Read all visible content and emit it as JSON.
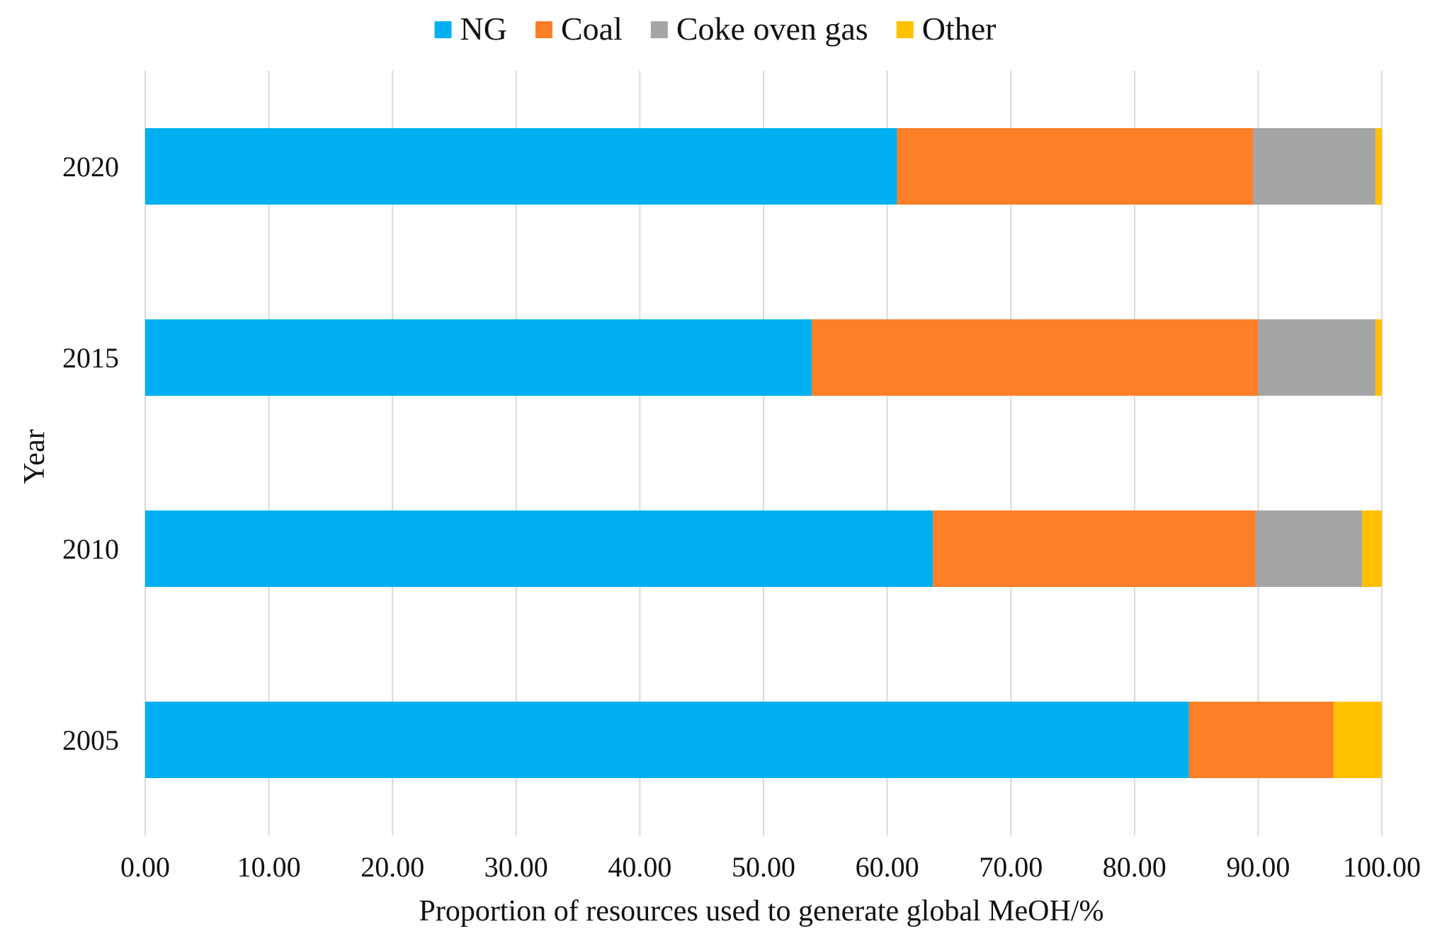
{
  "chart_data": {
    "type": "bar",
    "orientation": "horizontal",
    "stacked": true,
    "title": "",
    "xlabel": "Proportion of resources used to generate global MeOH/%",
    "ylabel": "Year",
    "xlim": [
      0,
      100
    ],
    "x_ticks": [
      "0.00",
      "10.00",
      "20.00",
      "30.00",
      "40.00",
      "50.00",
      "60.00",
      "70.00",
      "80.00",
      "90.00",
      "100.00"
    ],
    "categories": [
      "2020",
      "2015",
      "2010",
      "2005"
    ],
    "series": [
      {
        "name": "NG",
        "color": "#00b0f0",
        "values": [
          60.8,
          53.9,
          63.7,
          84.4
        ]
      },
      {
        "name": "Coal",
        "color": "#fd7f27",
        "values": [
          28.8,
          36.1,
          26.1,
          11.7
        ]
      },
      {
        "name": "Coke oven gas",
        "color": "#a5a5a5",
        "values": [
          9.9,
          9.5,
          8.6,
          0.0
        ]
      },
      {
        "name": "Other",
        "color": "#ffc000",
        "values": [
          0.5,
          0.5,
          1.6,
          3.9
        ]
      }
    ],
    "grid": {
      "vertical": true,
      "horizontal": false
    },
    "legend_position": "top-center"
  }
}
